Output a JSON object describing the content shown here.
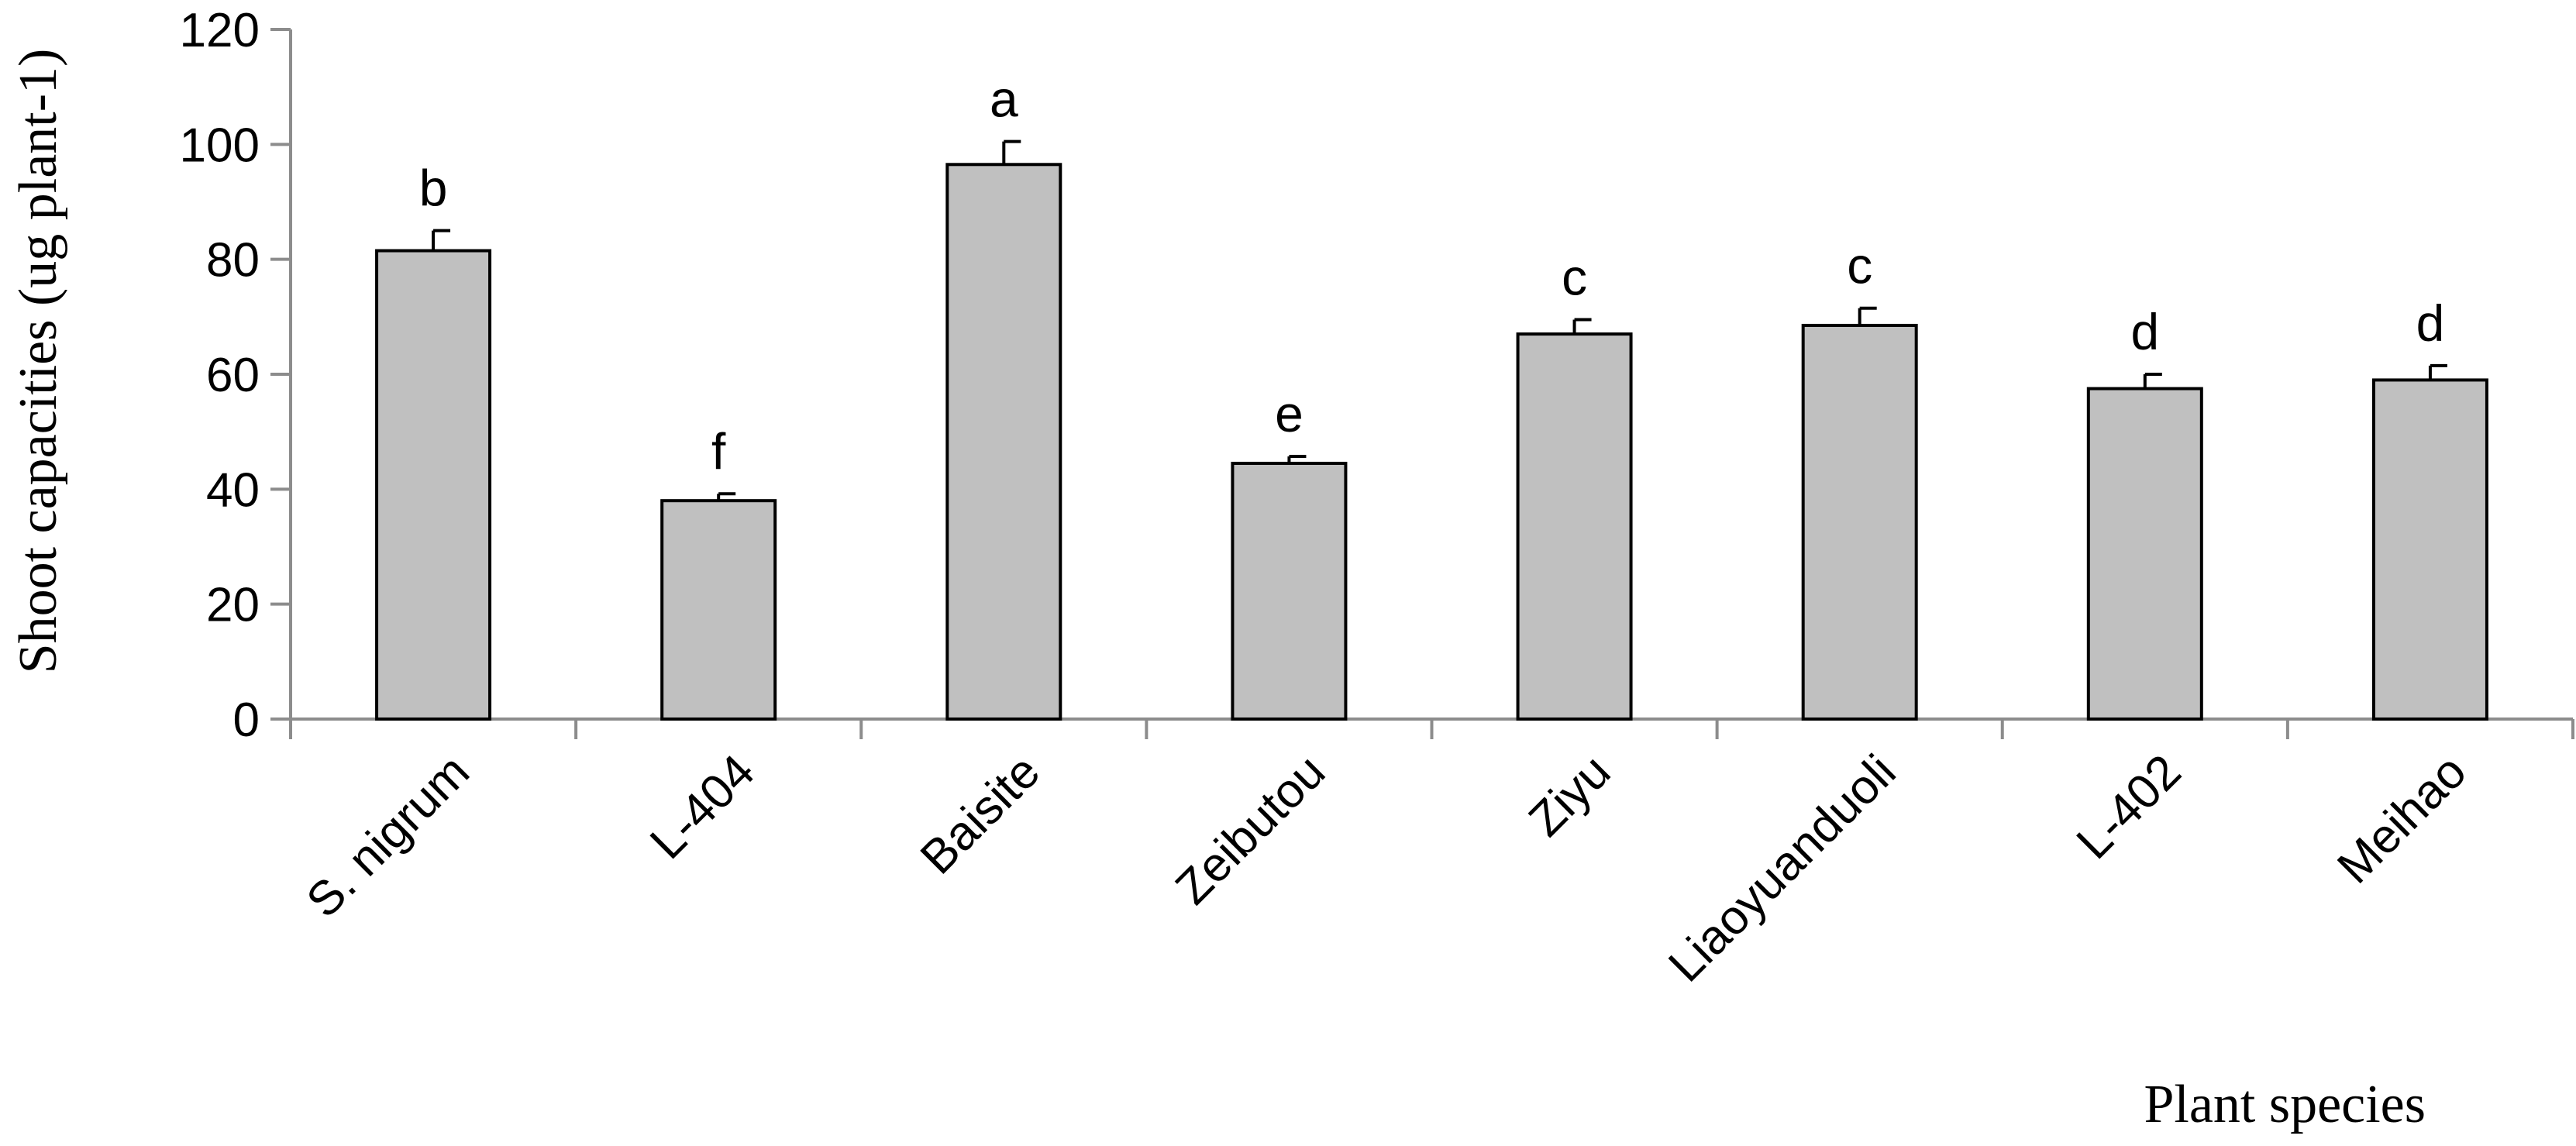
{
  "chart_data": {
    "type": "bar",
    "title": "",
    "xlabel": "Plant species",
    "ylabel": "Shoot capacities (ug plant-1)",
    "ylim": [
      0,
      120
    ],
    "yticks": [
      0,
      20,
      40,
      60,
      80,
      100,
      120
    ],
    "grid": false,
    "legend": "none",
    "categories": [
      "S. nigrum",
      "L-404",
      "Baisite",
      "Zeibutou",
      "Ziyu",
      "Liaoyuanduoli",
      "L-402",
      "Meihao"
    ],
    "series": [
      {
        "values": [
          81.5,
          38,
          96.5,
          44.5,
          67,
          68.5,
          57.5,
          59
        ],
        "errors": [
          3.5,
          1.2,
          4,
          1.2,
          2.5,
          3,
          2.5,
          2.5
        ],
        "significance": [
          "b",
          "f",
          "a",
          "e",
          "c",
          "c",
          "d",
          "d"
        ]
      }
    ],
    "colors": {
      "bar_fill": "#c0c0c0",
      "bar_stroke": "#000000",
      "axis": "#8c8c8c"
    }
  }
}
